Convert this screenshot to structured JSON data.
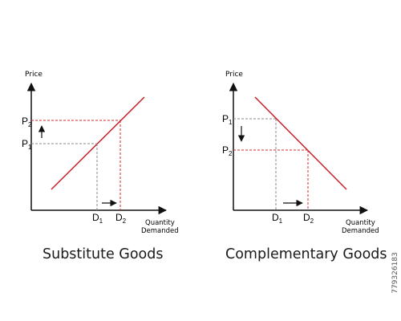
{
  "diagrams": [
    {
      "caption": "Substitute Goods",
      "y_axis_label": "Price",
      "x_axis_label_line1": "Quantity",
      "x_axis_label_line2": "Demanded",
      "price_labels": [
        {
          "letter": "P",
          "sub": "2"
        },
        {
          "letter": "P",
          "sub": "1"
        }
      ],
      "quantity_labels": [
        {
          "letter": "D",
          "sub": "1"
        },
        {
          "letter": "D",
          "sub": "2"
        }
      ],
      "curve": "upward-sloping red line",
      "price_shift": "up",
      "quantity_shift": "right"
    },
    {
      "caption": "Complementary Goods",
      "y_axis_label": "Price",
      "x_axis_label_line1": "Quantity",
      "x_axis_label_line2": "Demanded",
      "price_labels": [
        {
          "letter": "P",
          "sub": "1"
        },
        {
          "letter": "P",
          "sub": "2"
        }
      ],
      "quantity_labels": [
        {
          "letter": "D",
          "sub": "1"
        },
        {
          "letter": "D",
          "sub": "2"
        }
      ],
      "curve": "downward-sloping red line",
      "price_shift": "down",
      "quantity_shift": "right"
    }
  ],
  "side_id": "779326183",
  "colors": {
    "curve": "#c8202a",
    "guide_primary": "#d42a2a",
    "guide_secondary": "#8a8a8a",
    "axis": "#111111"
  }
}
